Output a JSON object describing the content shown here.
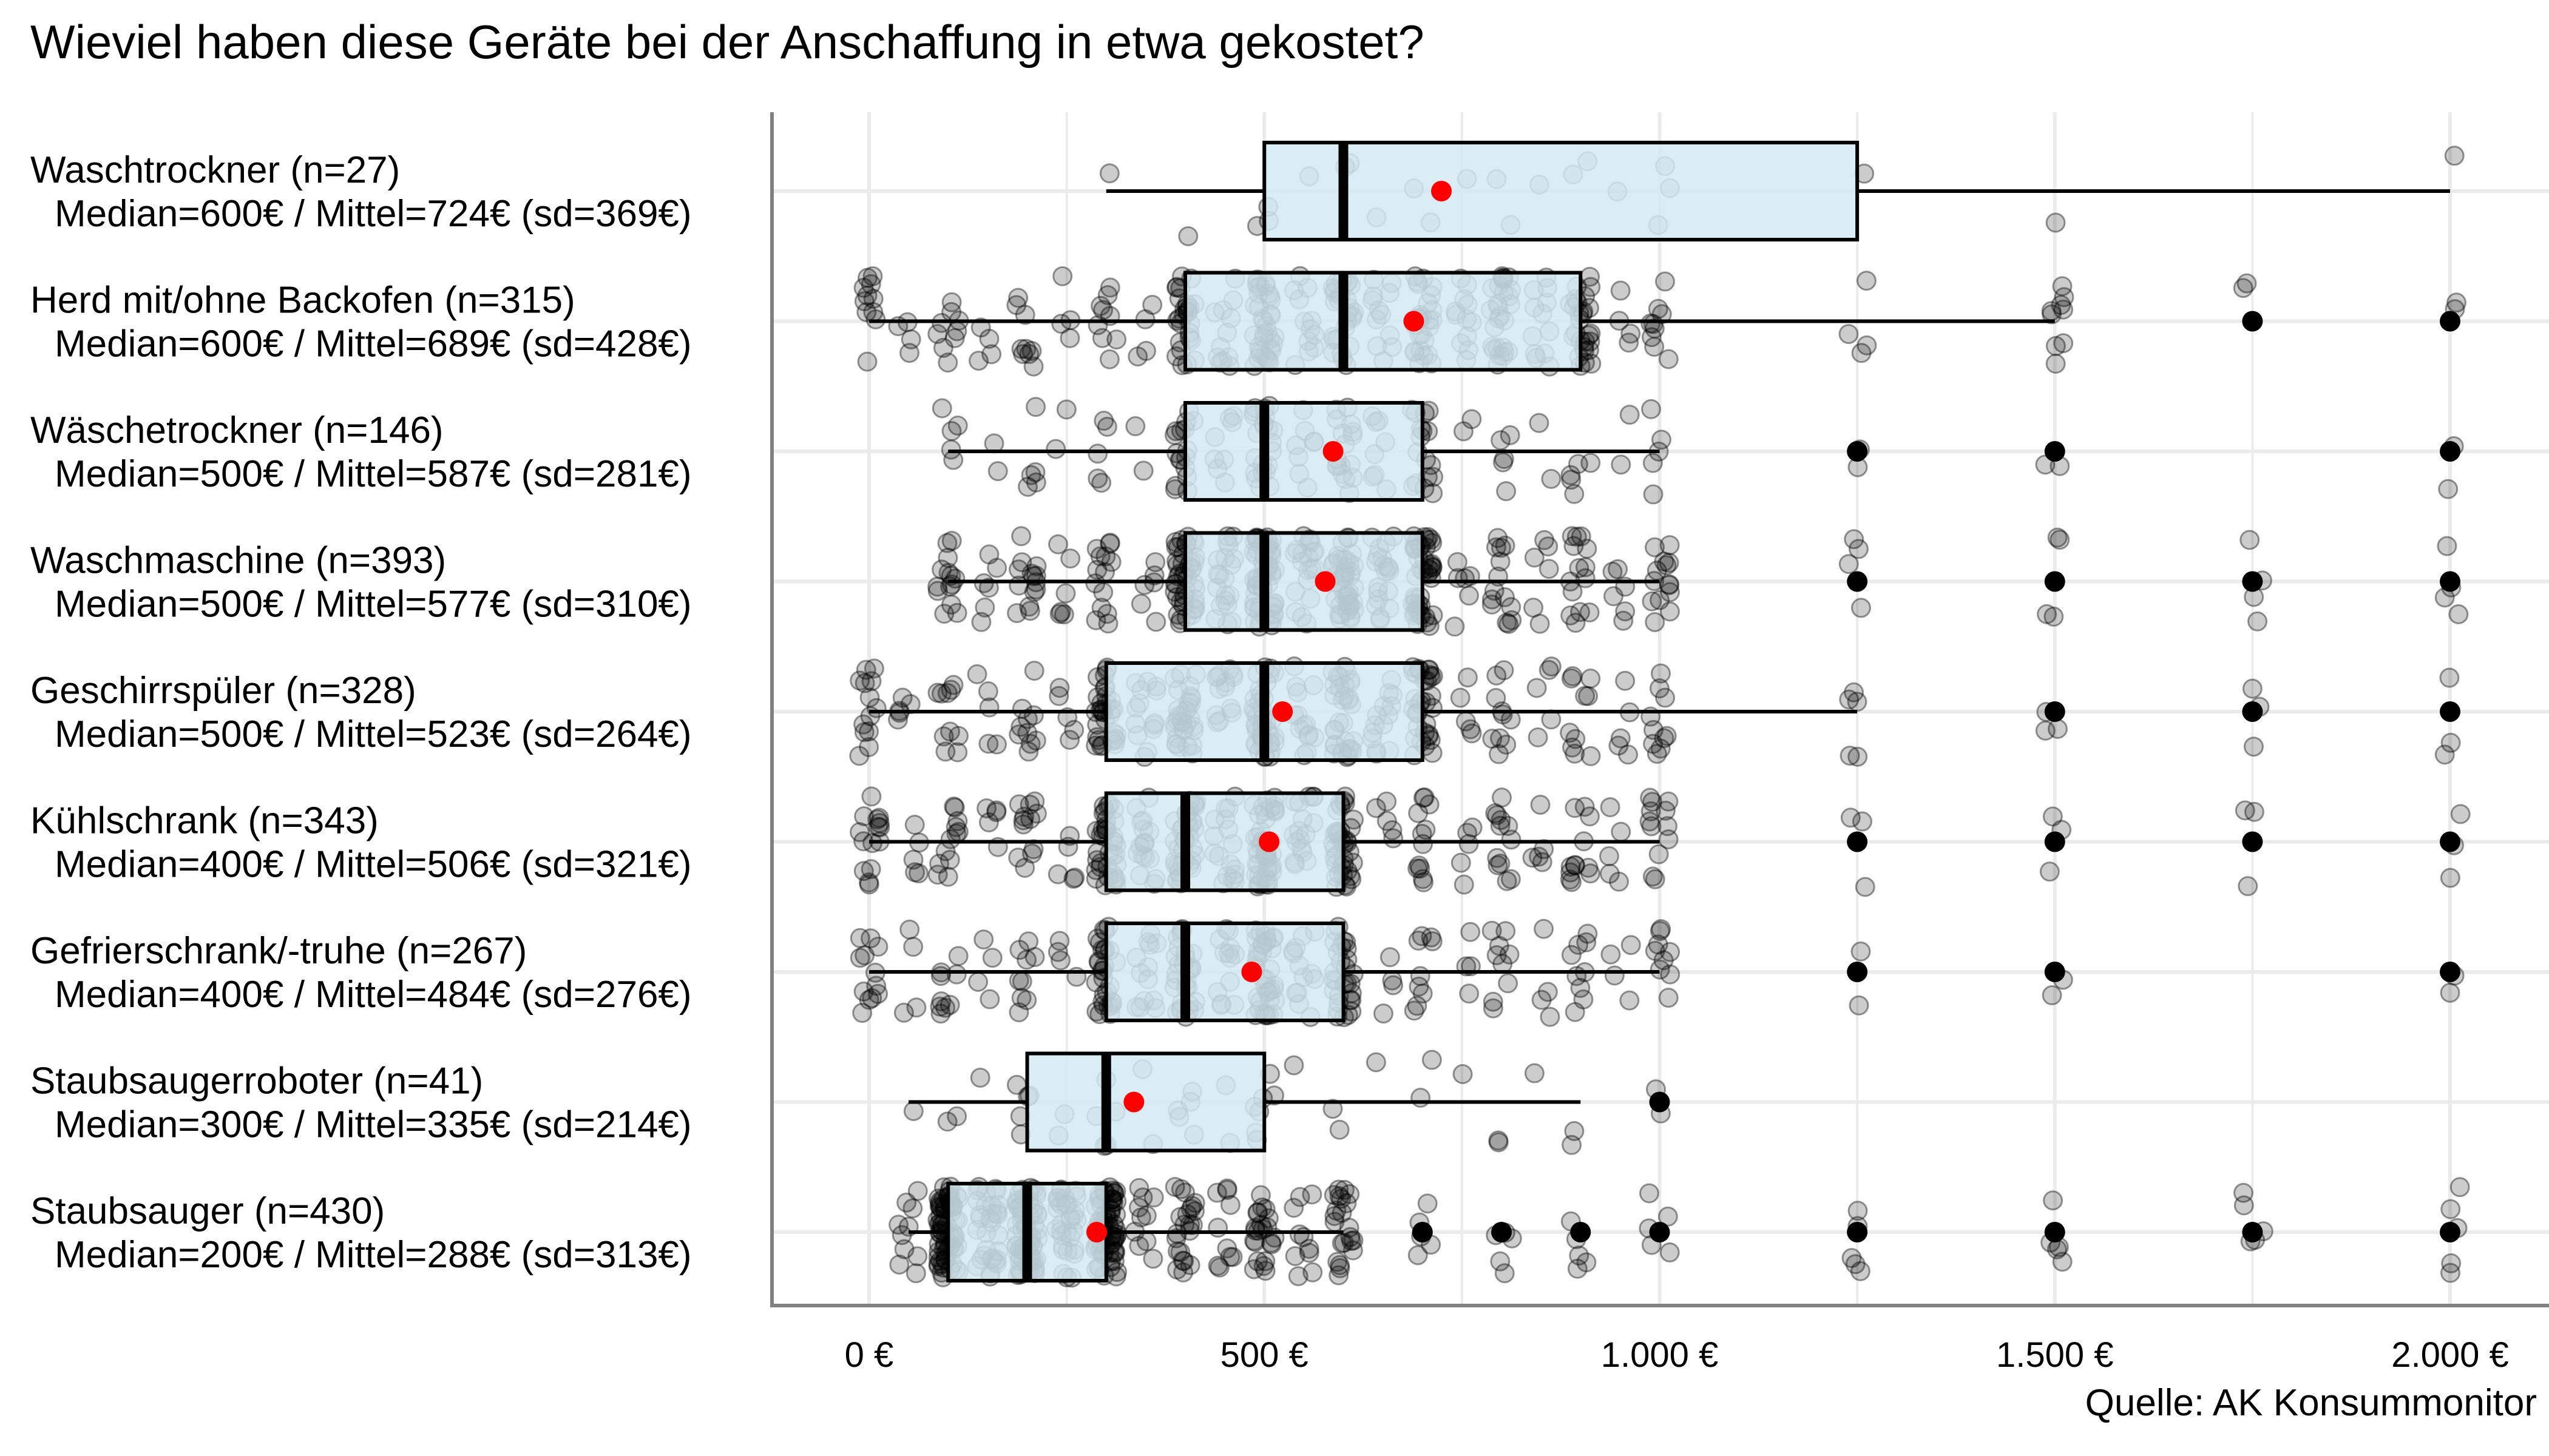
{
  "chart_data": {
    "type": "boxplot",
    "title": "Wieviel haben diese Geräte bei der Anschaffung in etwa gekostet?",
    "source": "Quelle: AK Konsummonitor",
    "xlabel": "",
    "ylabel": "",
    "xlim": [
      -120,
      2120
    ],
    "x_ticks": [
      0,
      500,
      1000,
      1500,
      2000
    ],
    "x_tick_labels": [
      "0 €",
      "500 €",
      "1.000 €",
      "1.500 €",
      "2.000 €"
    ],
    "grid": true,
    "colors": {
      "box_fill": "#d4eaf2",
      "box_stroke": "#000000",
      "mean": "#ff0000",
      "point": "#000000"
    },
    "categories": [
      {
        "name": "Waschtrockner (n=27)",
        "stats": "Median=600€ / Mittel=724€ (sd=369€)",
        "n": 27,
        "q1": 500,
        "median": 600,
        "q3": 1250,
        "whisker_low": 300,
        "whisker_high": 2000,
        "mean": 724,
        "outliers": []
      },
      {
        "name": "Herd mit/ohne Backofen (n=315)",
        "stats": "Median=600€ / Mittel=689€ (sd=428€)",
        "n": 315,
        "q1": 400,
        "median": 600,
        "q3": 900,
        "whisker_low": 0,
        "whisker_high": 1500,
        "mean": 689,
        "outliers": [
          1750,
          2000
        ]
      },
      {
        "name": "Wäschetrockner (n=146)",
        "stats": "Median=500€ / Mittel=587€ (sd=281€)",
        "n": 146,
        "q1": 400,
        "median": 500,
        "q3": 700,
        "whisker_low": 100,
        "whisker_high": 1000,
        "mean": 587,
        "outliers": [
          1250,
          1500,
          2000
        ]
      },
      {
        "name": "Waschmaschine (n=393)",
        "stats": "Median=500€ / Mittel=577€ (sd=310€)",
        "n": 393,
        "q1": 400,
        "median": 500,
        "q3": 700,
        "whisker_low": 100,
        "whisker_high": 1000,
        "mean": 577,
        "outliers": [
          1250,
          1500,
          1750,
          2000
        ]
      },
      {
        "name": "Geschirrspüler (n=328)",
        "stats": "Median=500€ / Mittel=523€ (sd=264€)",
        "n": 328,
        "q1": 300,
        "median": 500,
        "q3": 700,
        "whisker_low": 0,
        "whisker_high": 1250,
        "mean": 523,
        "outliers": [
          1500,
          1750,
          2000
        ]
      },
      {
        "name": "Kühlschrank (n=343)",
        "stats": "Median=400€ / Mittel=506€ (sd=321€)",
        "n": 343,
        "q1": 300,
        "median": 400,
        "q3": 600,
        "whisker_low": 0,
        "whisker_high": 1000,
        "mean": 506,
        "outliers": [
          1250,
          1500,
          1750,
          2000
        ]
      },
      {
        "name": "Gefrierschrank/-truhe (n=267)",
        "stats": "Median=400€ / Mittel=484€ (sd=276€)",
        "n": 267,
        "q1": 300,
        "median": 400,
        "q3": 600,
        "whisker_low": 0,
        "whisker_high": 1000,
        "mean": 484,
        "outliers": [
          1250,
          1500,
          2000
        ]
      },
      {
        "name": "Staubsaugerroboter (n=41)",
        "stats": "Median=300€ / Mittel=335€ (sd=214€)",
        "n": 41,
        "q1": 200,
        "median": 300,
        "q3": 500,
        "whisker_low": 50,
        "whisker_high": 900,
        "mean": 335,
        "outliers": [
          1000
        ]
      },
      {
        "name": "Staubsauger (n=430)",
        "stats": "Median=200€ / Mittel=288€ (sd=313€)",
        "n": 430,
        "q1": 100,
        "median": 200,
        "q3": 300,
        "whisker_low": 50,
        "whisker_high": 600,
        "mean": 288,
        "outliers": [
          700,
          800,
          900,
          1000,
          1250,
          1500,
          1750,
          2000
        ]
      }
    ]
  }
}
